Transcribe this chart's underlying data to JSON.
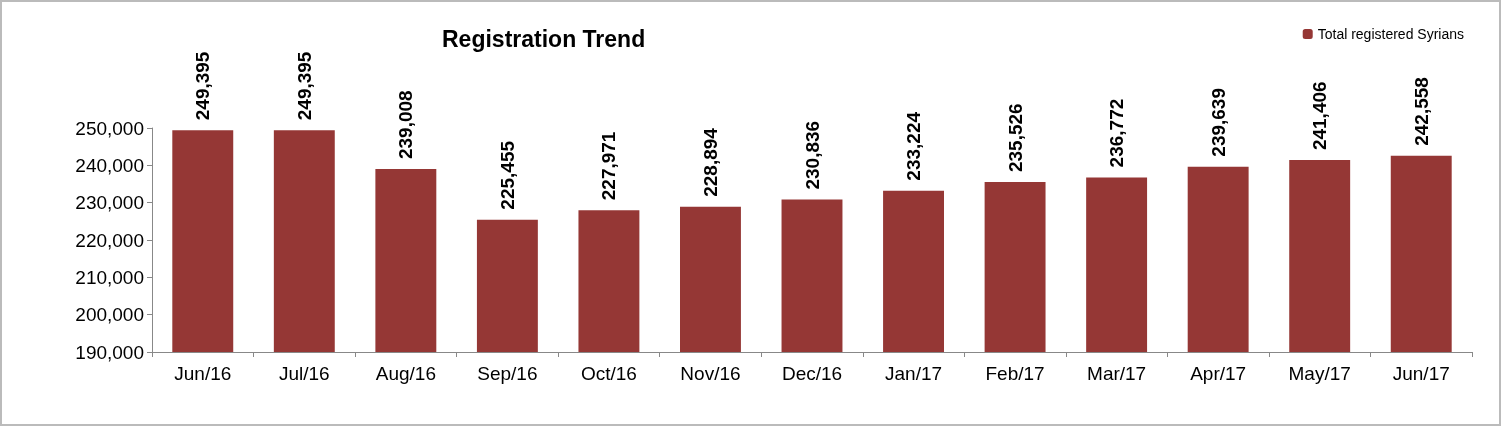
{
  "chart_data": {
    "type": "bar",
    "title": "Registration Trend",
    "categories": [
      "Jun/16",
      "Jul/16",
      "Aug/16",
      "Sep/16",
      "Oct/16",
      "Nov/16",
      "Dec/16",
      "Jan/17",
      "Feb/17",
      "Mar/17",
      "Apr/17",
      "May/17",
      "Jun/17"
    ],
    "series": [
      {
        "name": "Total registered Syrians",
        "color": "#953735",
        "values": [
          249395,
          249395,
          239008,
          225455,
          227971,
          228894,
          230836,
          233224,
          235526,
          236772,
          239639,
          241406,
          242558
        ],
        "value_labels": [
          "249,395",
          "249,395",
          "239,008",
          "225,455",
          "227,971",
          "228,894",
          "230,836",
          "233,224",
          "235,526",
          "236,772",
          "239,639",
          "241,406",
          "242,558"
        ]
      }
    ],
    "ylim": [
      190000,
      250000
    ],
    "yticks": [
      {
        "value": 190000,
        "label": "190,000"
      },
      {
        "value": 200000,
        "label": "200,000"
      },
      {
        "value": 210000,
        "label": "210,000"
      },
      {
        "value": 220000,
        "label": "220,000"
      },
      {
        "value": 230000,
        "label": "230,000"
      },
      {
        "value": 240000,
        "label": "240,000"
      },
      {
        "value": 250000,
        "label": "250,000"
      }
    ],
    "grid": false,
    "legend": "top right"
  }
}
